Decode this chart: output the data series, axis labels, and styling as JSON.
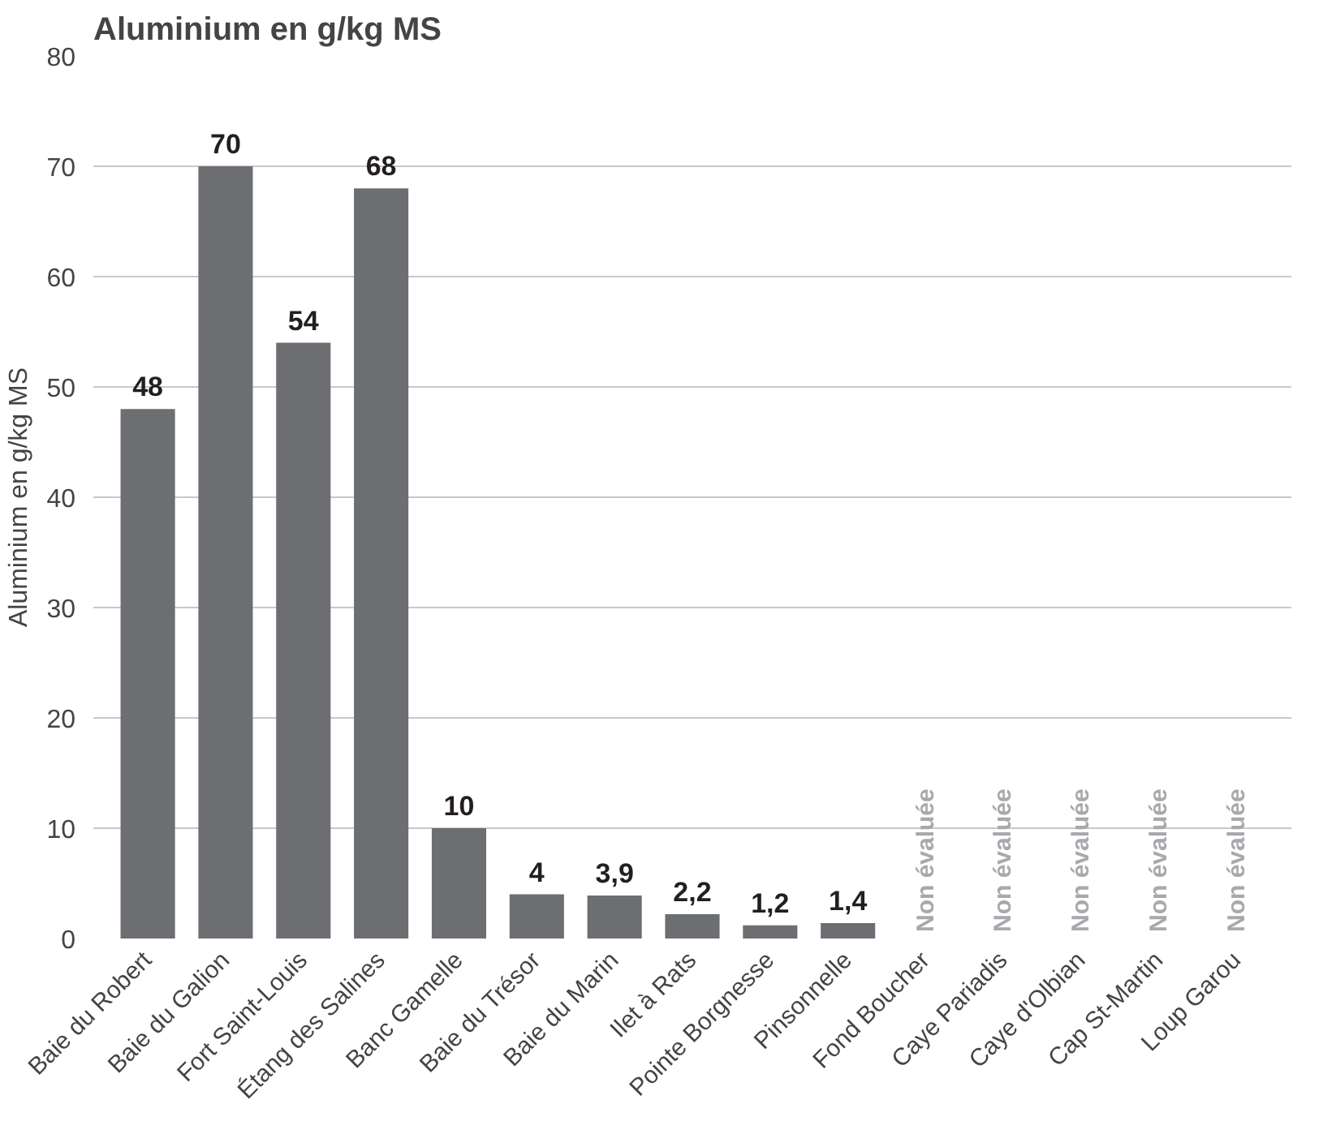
{
  "chart_data": {
    "type": "bar",
    "title": "Aluminium en g/kg MS",
    "ylabel": "Aluminium en g/kg MS",
    "categories": [
      "Baie du Robert",
      "Baie du Galion",
      "Fort Saint-Louis",
      "Étang des Salines",
      "Banc Gamelle",
      "Baie du Trésor",
      "Baie du Marin",
      "Ilet à Rats",
      "Pointe Borgnesse",
      "Pinsonnelle",
      "Fond Boucher",
      "Caye Pariadis",
      "Caye d'Olbian",
      "Cap St-Martin",
      "Loup Garou"
    ],
    "values": [
      48,
      70,
      54,
      68,
      10,
      4,
      3.9,
      2.2,
      1.2,
      1.4,
      null,
      null,
      null,
      null,
      null
    ],
    "value_labels": [
      "48",
      "70",
      "54",
      "68",
      "10",
      "4",
      "3,9",
      "2,2",
      "1,2",
      "1,4",
      "Non évaluée",
      "Non évaluée",
      "Non évaluée",
      "Non évaluée",
      "Non évaluée"
    ],
    "color": "#6d6e71",
    "ylim": [
      0,
      80
    ],
    "yticks": [
      0,
      10,
      20,
      30,
      40,
      50,
      60,
      70,
      80
    ],
    "grid": "y"
  }
}
